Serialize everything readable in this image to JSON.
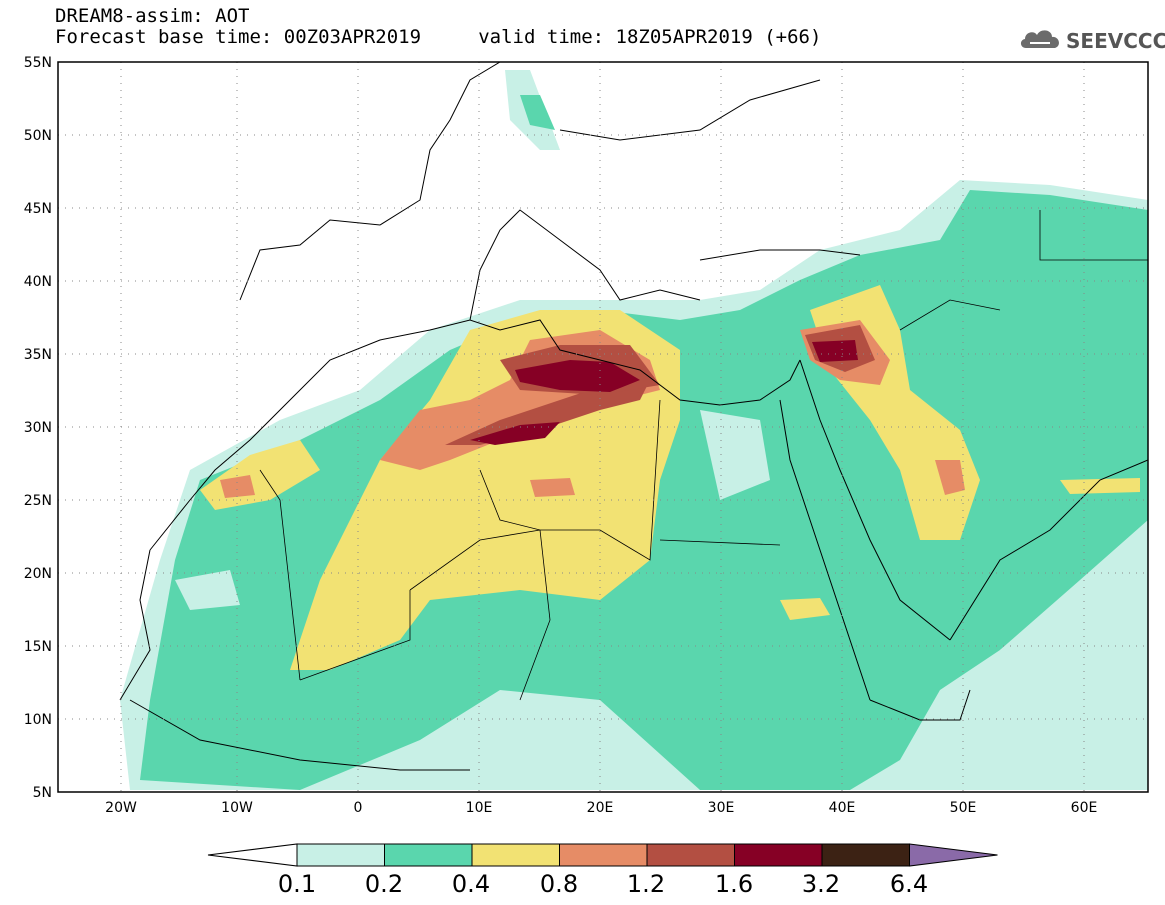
{
  "header": {
    "line1": "DREAM8-assim: AOT",
    "line2": "Forecast base time: 00Z03APR2019     valid time: 18Z05APR2019 (+66)",
    "logo_text": "SEEVCCC"
  },
  "map": {
    "lon_range": [
      -25,
      65
    ],
    "lat_range": [
      5,
      55
    ],
    "lon_ticks": [
      "20W",
      "10W",
      "0",
      "10E",
      "20E",
      "30E",
      "40E",
      "50E",
      "60E"
    ],
    "lat_ticks": [
      "55N",
      "50N",
      "45N",
      "40N",
      "35N",
      "30N",
      "25N",
      "20N",
      "15N",
      "10N",
      "5N"
    ]
  },
  "colorbar": {
    "levels": [
      "0.1",
      "0.2",
      "0.4",
      "0.8",
      "1.2",
      "1.6",
      "3.2",
      "6.4"
    ],
    "colors": [
      "#ffffff",
      "#c8f0e6",
      "#5ad6ad",
      "#f2e273",
      "#e68c66",
      "#b34f42",
      "#860025",
      "#3c2214",
      "#8a6aa8"
    ]
  }
}
